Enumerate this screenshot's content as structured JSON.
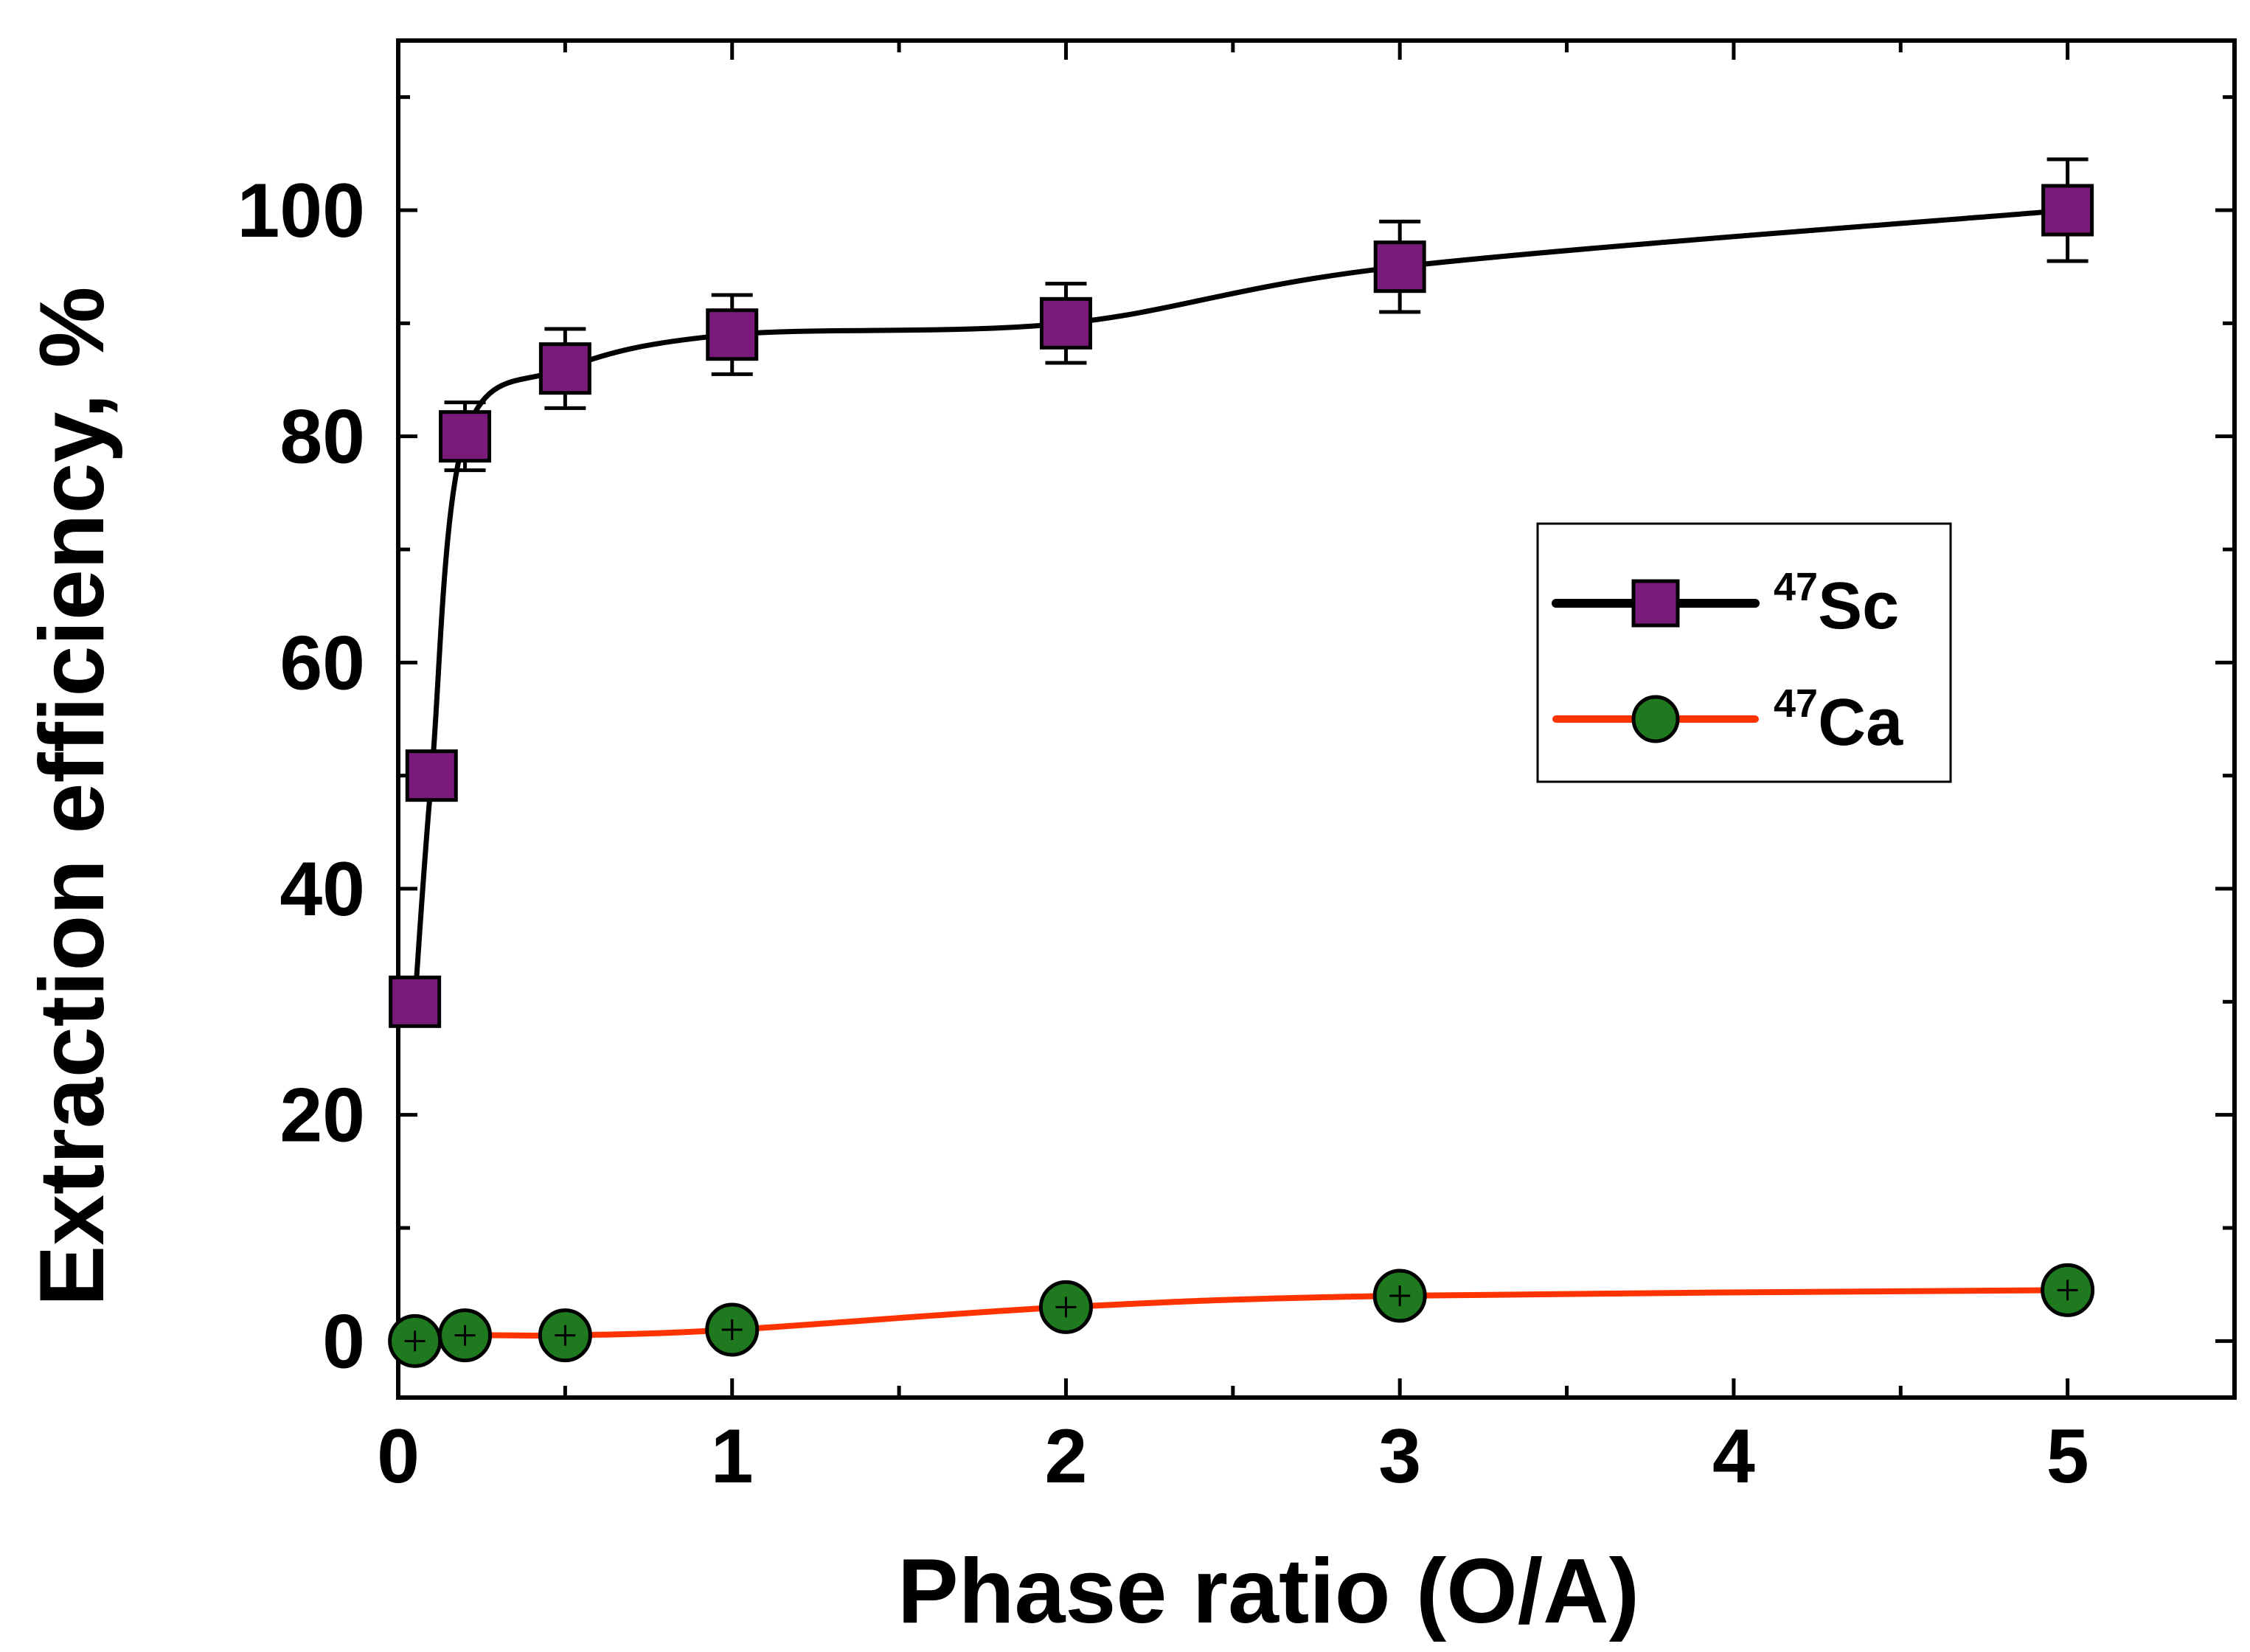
{
  "chart_data": {
    "type": "line",
    "title": "",
    "xlabel": "Phase ratio (O/A)",
    "ylabel": "Extraction efficiency, %",
    "xlim": [
      0,
      5.5
    ],
    "ylim": [
      -5,
      115
    ],
    "x_ticks": [
      "0",
      "1",
      "2",
      "3",
      "4",
      "5"
    ],
    "x_tick_values": [
      0,
      1,
      2,
      3,
      4,
      5
    ],
    "y_ticks": [
      "0",
      "20",
      "40",
      "60",
      "80",
      "100"
    ],
    "y_tick_values": [
      0,
      20,
      40,
      60,
      80,
      100
    ],
    "grid": false,
    "legend_position": "center-right",
    "series": [
      {
        "name": "47Sc",
        "isotope_mass": "47",
        "symbol": "Sc",
        "marker": "square",
        "line_color": "#000000",
        "marker_color": "#7a1a7a",
        "x": [
          0.05,
          0.1,
          0.2,
          0.5,
          1,
          2,
          3,
          5
        ],
        "y": [
          30,
          50,
          80,
          86,
          89,
          90,
          95,
          100
        ],
        "error": [
          0,
          0,
          3,
          3.5,
          3.5,
          3.5,
          4,
          4.5
        ]
      },
      {
        "name": "47Ca",
        "isotope_mass": "47",
        "symbol": "Ca",
        "marker": "circle",
        "line_color": "#ff3300",
        "marker_color": "#1f7a1f",
        "x": [
          0.05,
          0.2,
          0.5,
          1,
          2,
          3,
          5
        ],
        "y": [
          0,
          0.5,
          0.5,
          1,
          3,
          4,
          4.5
        ],
        "error": [
          0,
          0,
          0,
          0,
          0,
          0,
          0
        ]
      }
    ]
  }
}
